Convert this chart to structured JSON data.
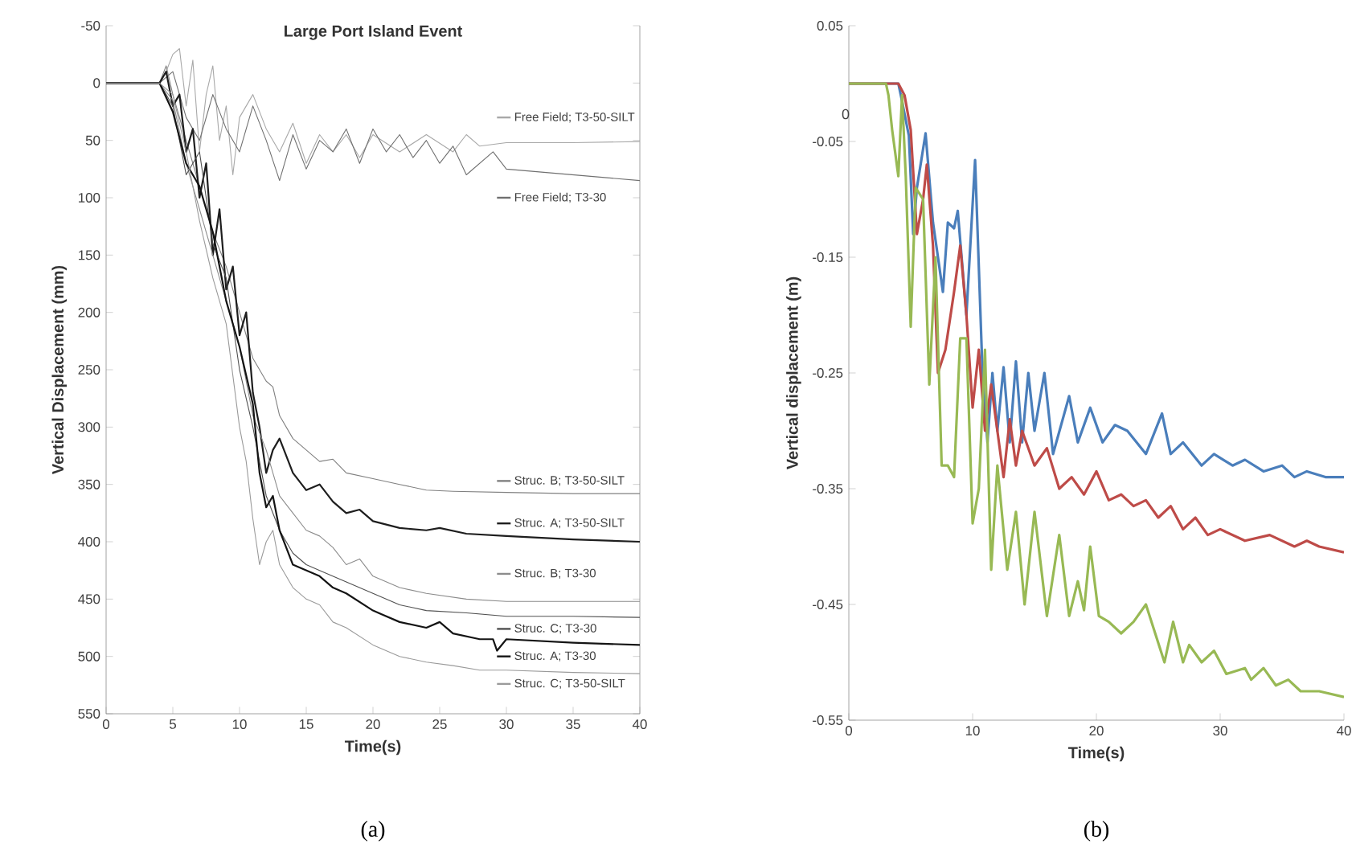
{
  "chart_data": [
    {
      "type": "line",
      "title": "Large Port Island Event",
      "xlabel": "Time(s)",
      "ylabel": "Vertical Displacement (mm)",
      "xlim": [
        0,
        40
      ],
      "xticks": [
        0,
        5,
        10,
        15,
        20,
        25,
        30,
        35,
        40
      ],
      "ylim": [
        550,
        -50
      ],
      "yticks": [
        -50,
        0,
        50,
        100,
        150,
        200,
        250,
        300,
        350,
        400,
        450,
        500,
        550
      ],
      "legend": "right",
      "grid": false,
      "marker": "none",
      "line_style": "solid",
      "annotations": [
        "(a)"
      ],
      "series": [
        {
          "name": "Free Field; T3-50-SILT",
          "color": "#a8a8a8",
          "x": [
            0,
            2,
            4,
            4.5,
            5,
            5.5,
            6,
            6.5,
            7,
            7.5,
            8,
            8.5,
            9,
            9.5,
            10,
            11,
            12,
            13,
            14,
            15,
            16,
            17,
            18,
            19,
            20,
            22,
            24,
            26,
            27,
            28,
            30,
            35,
            40
          ],
          "values": [
            0,
            0,
            0,
            -10,
            -25,
            -30,
            20,
            -20,
            60,
            10,
            -15,
            50,
            20,
            80,
            30,
            10,
            40,
            60,
            35,
            70,
            45,
            60,
            45,
            65,
            45,
            60,
            45,
            60,
            45,
            55,
            52,
            52,
            51
          ]
        },
        {
          "name": "Free Field; T3-30",
          "color": "#707070",
          "x": [
            0,
            2,
            4,
            4.5,
            5,
            6,
            7,
            8,
            9,
            10,
            11,
            12,
            13,
            14,
            15,
            16,
            17,
            18,
            19,
            20,
            21,
            22,
            23,
            24,
            25,
            26,
            27,
            28,
            29,
            30,
            35,
            40
          ],
          "values": [
            0,
            0,
            0,
            -5,
            -10,
            30,
            50,
            10,
            40,
            60,
            20,
            50,
            85,
            45,
            75,
            50,
            60,
            40,
            70,
            40,
            60,
            45,
            65,
            50,
            70,
            55,
            80,
            70,
            60,
            75,
            80,
            85
          ]
        },
        {
          "name": "Struc. B; T3-50-SILT",
          "color": "#808080",
          "x": [
            0,
            2,
            4,
            4.5,
            5,
            6,
            7,
            8,
            9,
            10,
            11,
            12,
            12.5,
            13,
            14,
            15,
            16,
            17,
            18,
            20,
            22,
            24,
            26,
            30,
            35,
            40
          ],
          "values": [
            0,
            0,
            0,
            -15,
            10,
            50,
            90,
            130,
            160,
            200,
            240,
            260,
            265,
            290,
            310,
            320,
            330,
            328,
            340,
            345,
            350,
            355,
            356,
            357,
            358,
            358
          ]
        },
        {
          "name": "Struc. A; T3-50-SILT",
          "color": "#1e1e1e",
          "x": [
            0,
            2,
            4,
            4.5,
            5,
            5.5,
            6,
            6.5,
            7,
            7.5,
            8,
            8.5,
            9,
            9.5,
            10,
            10.5,
            11,
            11.5,
            12,
            12.5,
            13,
            14,
            15,
            16,
            17,
            18,
            19,
            20,
            22,
            24,
            25,
            27,
            30,
            35,
            40
          ],
          "values": [
            0,
            0,
            0,
            -10,
            20,
            10,
            60,
            40,
            100,
            70,
            150,
            110,
            180,
            160,
            220,
            200,
            270,
            300,
            340,
            320,
            310,
            340,
            355,
            350,
            365,
            375,
            372,
            382,
            388,
            390,
            388,
            393,
            395,
            398,
            400
          ]
        },
        {
          "name": "Struc. B; T3-30",
          "color": "#8c8c8c",
          "x": [
            0,
            2,
            4,
            5,
            6,
            7,
            8,
            9,
            10,
            11,
            12,
            13,
            14,
            15,
            16,
            17,
            18,
            19,
            20,
            22,
            24,
            27,
            30,
            40
          ],
          "values": [
            0,
            0,
            0,
            15,
            70,
            110,
            150,
            190,
            230,
            290,
            320,
            360,
            375,
            390,
            395,
            405,
            420,
            415,
            430,
            440,
            445,
            450,
            452,
            452
          ]
        },
        {
          "name": "Struc. C; T3-30",
          "color": "#505050",
          "x": [
            0,
            2,
            4,
            5,
            6,
            7,
            8,
            9,
            10,
            11,
            12,
            13,
            14,
            15,
            16,
            18,
            20,
            22,
            24,
            27,
            30,
            35,
            40
          ],
          "values": [
            0,
            0,
            0,
            20,
            80,
            60,
            140,
            170,
            250,
            300,
            360,
            390,
            410,
            420,
            425,
            435,
            445,
            455,
            460,
            462,
            465,
            465,
            466
          ]
        },
        {
          "name": "Struc. A; T3-30",
          "color": "#141414",
          "x": [
            0,
            2,
            4,
            5,
            6,
            7,
            8,
            9,
            10,
            11,
            11.5,
            12,
            12.5,
            13,
            14,
            15,
            16,
            17,
            18,
            20,
            22,
            24,
            25,
            26,
            28,
            29,
            29.3,
            30,
            35,
            40
          ],
          "values": [
            0,
            0,
            0,
            25,
            70,
            90,
            130,
            190,
            230,
            280,
            340,
            370,
            360,
            390,
            420,
            425,
            430,
            440,
            445,
            460,
            470,
            475,
            470,
            480,
            485,
            485,
            495,
            485,
            488,
            490
          ]
        },
        {
          "name": "Struc. C; T3-50-SILT",
          "color": "#9a9a9a",
          "x": [
            0,
            2,
            4,
            5,
            6,
            7,
            8,
            9,
            10,
            10.5,
            11,
            11.5,
            12,
            12.5,
            13,
            14,
            15,
            16,
            17,
            18,
            20,
            22,
            24,
            26,
            28,
            30,
            35,
            40
          ],
          "values": [
            0,
            0,
            0,
            10,
            60,
            120,
            170,
            210,
            300,
            330,
            380,
            420,
            400,
            390,
            420,
            440,
            450,
            455,
            470,
            475,
            490,
            500,
            505,
            508,
            512,
            512,
            514,
            515
          ]
        }
      ]
    },
    {
      "type": "line",
      "xlabel": "Time(s)",
      "ylabel": "Vertical displacement (m)",
      "xlim": [
        0,
        40
      ],
      "xticks": [
        0,
        10,
        20,
        30,
        40
      ],
      "ylim": [
        -0.55,
        0.05
      ],
      "yticks": [
        0.05,
        -0.05,
        -0.15,
        -0.25,
        -0.35,
        -0.45,
        -0.55
      ],
      "grid": false,
      "marker": "none",
      "line_style": "solid",
      "annotations": [
        "0",
        "(b)"
      ],
      "series": [
        {
          "color": "#4a7ebb",
          "x": [
            0,
            2,
            4,
            4.2,
            4.85,
            5.2,
            5.5,
            6.2,
            6.8,
            7.6,
            8,
            8.5,
            8.8,
            9.5,
            10.2,
            10.8,
            11.2,
            11.6,
            12,
            12.5,
            13,
            13.5,
            14,
            14.5,
            15,
            15.8,
            16.5,
            17.8,
            18.5,
            19.5,
            20.5,
            21.5,
            22.5,
            24,
            25.3,
            26,
            27,
            28.5,
            29.5,
            31,
            32,
            33.5,
            35,
            36,
            37,
            38.5,
            40
          ],
          "values": [
            0,
            0,
            0,
            -0.01,
            -0.045,
            -0.13,
            -0.09,
            -0.043,
            -0.12,
            -0.18,
            -0.12,
            -0.125,
            -0.11,
            -0.2,
            -0.066,
            -0.25,
            -0.31,
            -0.25,
            -0.3,
            -0.245,
            -0.31,
            -0.24,
            -0.31,
            -0.25,
            -0.3,
            -0.25,
            -0.32,
            -0.27,
            -0.31,
            -0.28,
            -0.31,
            -0.295,
            -0.3,
            -0.32,
            -0.285,
            -0.32,
            -0.31,
            -0.33,
            -0.32,
            -0.33,
            -0.325,
            -0.335,
            -0.33,
            -0.34,
            -0.335,
            -0.34,
            -0.34
          ]
        },
        {
          "color": "#be4b48",
          "x": [
            0,
            2,
            4,
            4.5,
            5,
            5.5,
            6,
            6.3,
            6.8,
            7.2,
            7.8,
            8.5,
            9,
            9.5,
            10,
            10.5,
            11,
            11.5,
            12.5,
            13,
            13.5,
            14,
            15,
            16,
            17,
            18,
            19,
            20,
            21,
            22,
            23,
            24,
            25,
            26,
            27,
            28,
            29,
            30,
            32,
            34,
            36,
            37,
            38,
            40
          ],
          "values": [
            0,
            0,
            0,
            -0.01,
            -0.04,
            -0.13,
            -0.1,
            -0.07,
            -0.14,
            -0.25,
            -0.23,
            -0.18,
            -0.14,
            -0.2,
            -0.28,
            -0.23,
            -0.3,
            -0.26,
            -0.34,
            -0.29,
            -0.33,
            -0.3,
            -0.33,
            -0.315,
            -0.35,
            -0.34,
            -0.355,
            -0.335,
            -0.36,
            -0.355,
            -0.365,
            -0.36,
            -0.375,
            -0.365,
            -0.385,
            -0.375,
            -0.39,
            -0.385,
            -0.395,
            -0.39,
            -0.4,
            -0.395,
            -0.4,
            -0.405
          ]
        },
        {
          "color": "#98b954",
          "x": [
            0,
            2,
            3,
            3.2,
            3.5,
            4,
            4.3,
            4.6,
            5,
            5.4,
            6,
            6.5,
            7,
            7.5,
            8,
            8.5,
            9,
            9.5,
            10,
            10.5,
            11,
            11.5,
            12,
            12.8,
            13.5,
            14.2,
            15,
            16,
            17,
            17.8,
            18.5,
            19,
            19.5,
            20.2,
            21,
            22,
            23,
            24,
            25.5,
            26.2,
            27,
            27.5,
            28.5,
            29.5,
            30.5,
            32,
            32.5,
            33.5,
            34.5,
            35.5,
            36.5,
            38,
            40
          ],
          "values": [
            0,
            0,
            0,
            -0.01,
            -0.04,
            -0.08,
            -0.01,
            -0.08,
            -0.21,
            -0.09,
            -0.1,
            -0.26,
            -0.15,
            -0.33,
            -0.33,
            -0.34,
            -0.22,
            -0.22,
            -0.38,
            -0.35,
            -0.23,
            -0.42,
            -0.33,
            -0.42,
            -0.37,
            -0.45,
            -0.37,
            -0.46,
            -0.39,
            -0.46,
            -0.43,
            -0.455,
            -0.4,
            -0.46,
            -0.465,
            -0.475,
            -0.465,
            -0.45,
            -0.5,
            -0.465,
            -0.5,
            -0.485,
            -0.5,
            -0.49,
            -0.51,
            -0.505,
            -0.515,
            -0.505,
            -0.52,
            -0.515,
            -0.525,
            -0.525,
            -0.53
          ]
        }
      ]
    }
  ]
}
